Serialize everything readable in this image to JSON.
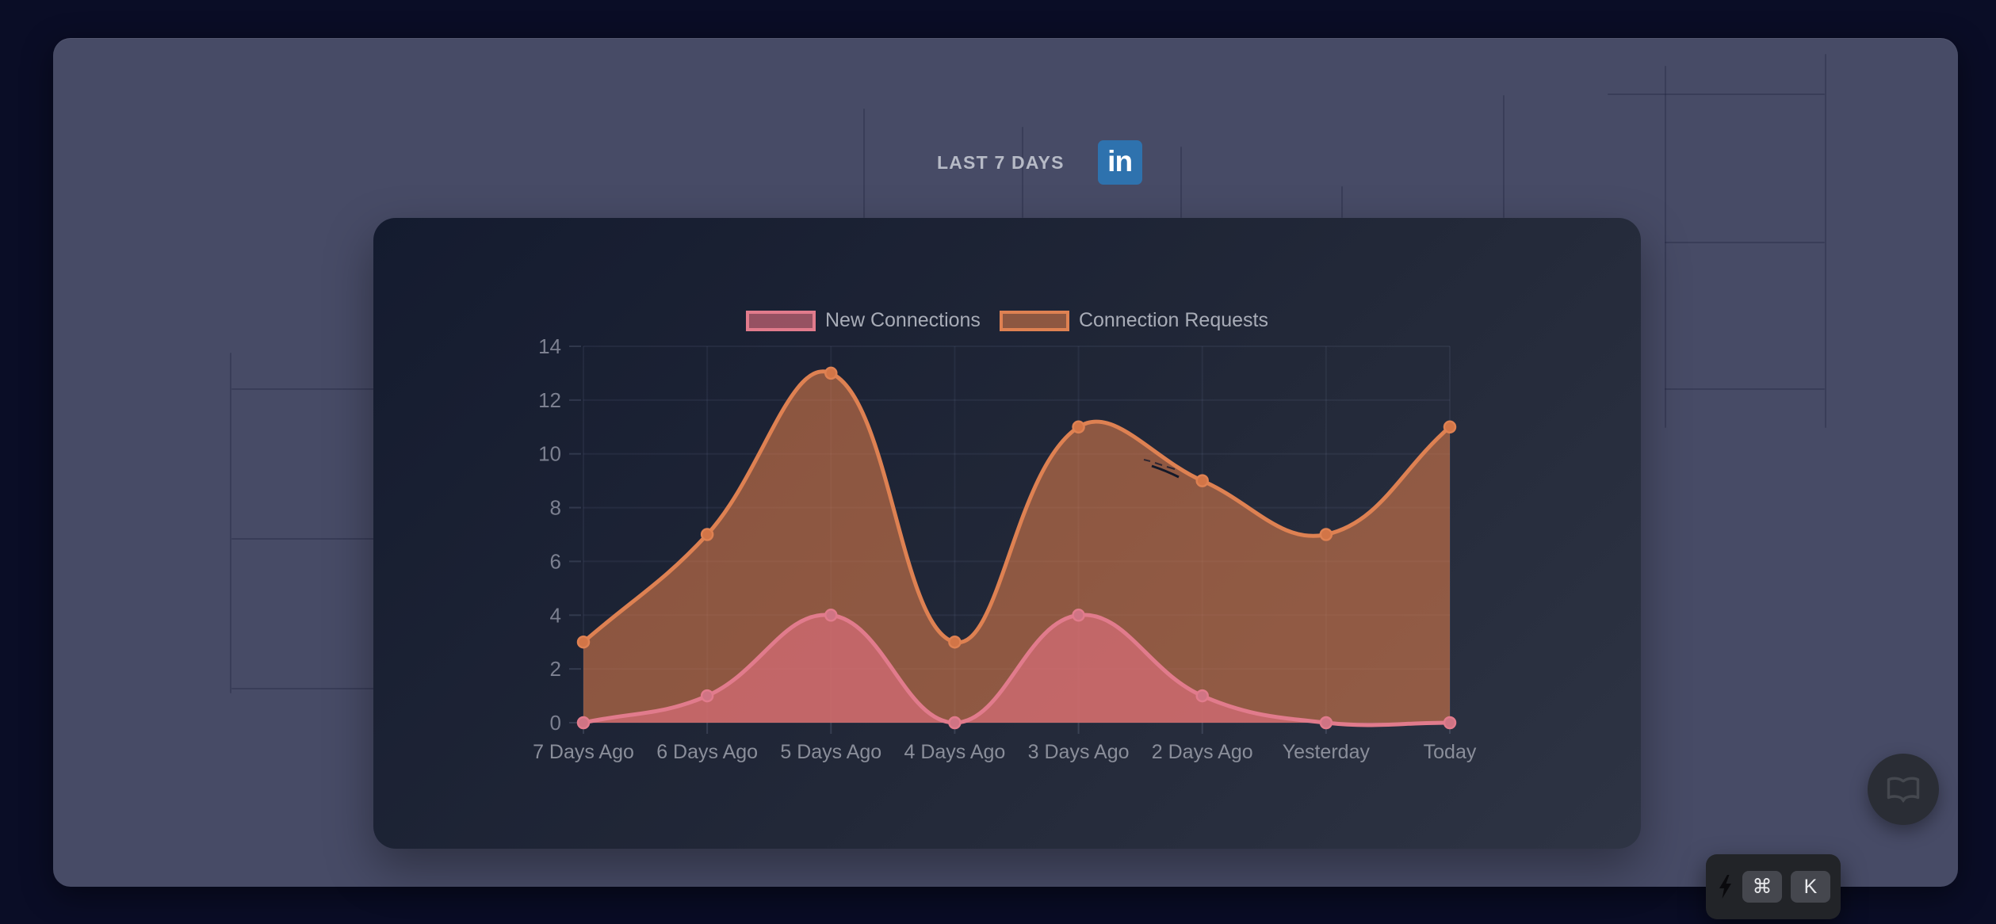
{
  "header": {
    "title": "LAST 7 DAYS",
    "linkedin_glyph": "in"
  },
  "chart_data": {
    "type": "area",
    "title": "",
    "categories": [
      "7 Days Ago",
      "6 Days Ago",
      "5 Days Ago",
      "4 Days Ago",
      "3 Days Ago",
      "2 Days Ago",
      "Yesterday",
      "Today"
    ],
    "series": [
      {
        "name": "New Connections",
        "values": [
          0,
          1,
          4,
          0,
          4,
          1,
          0,
          0
        ],
        "line_color": "#e17b8c",
        "fill_color": "rgba(226,111,127,0.62)",
        "point_color": "#cf7484"
      },
      {
        "name": "Connection Requests",
        "values": [
          3,
          7,
          13,
          3,
          11,
          9,
          7,
          11
        ],
        "line_color": "#de8152",
        "fill_color": "rgba(222,124,74,0.58)",
        "point_color": "#d27547"
      }
    ],
    "xlabel": "",
    "ylabel": "",
    "ylim": [
      0,
      14
    ],
    "y_ticks": [
      0,
      2,
      4,
      6,
      8,
      10,
      12,
      14
    ],
    "grid": true,
    "smooth": true,
    "legend_position": "top",
    "axis_label_color": "#8a8e9a",
    "grid_color": "rgba(173,184,220,0.07)",
    "tick_color": "rgba(173,184,220,0.16)"
  },
  "fab": {
    "icon": "open-book"
  },
  "shortcut": {
    "icon": "lightning",
    "keys": [
      "⌘",
      "K"
    ]
  }
}
